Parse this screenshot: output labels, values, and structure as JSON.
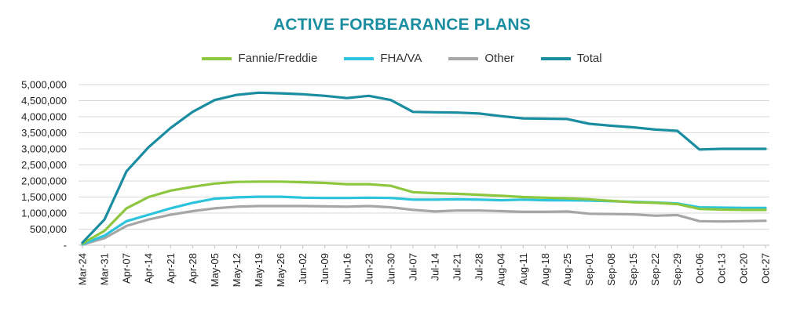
{
  "chart_data": {
    "type": "line",
    "title": "ACTIVE FORBEARANCE PLANS",
    "xlabel": "",
    "ylabel": "",
    "ylim": [
      0,
      5000000
    ],
    "yticks": [
      "-",
      "500,000",
      "1,000,000",
      "1,500,000",
      "2,000,000",
      "2,500,000",
      "3,000,000",
      "3,500,000",
      "4,000,000",
      "4,500,000",
      "5,000,000"
    ],
    "grid": true,
    "legend_position": "top",
    "categories": [
      "Mar-24",
      "Mar-31",
      "Apr-07",
      "Apr-14",
      "Apr-21",
      "Apr-28",
      "May-05",
      "May-12",
      "May-19",
      "May-26",
      "Jun-02",
      "Jun-09",
      "Jun-16",
      "Jun-23",
      "Jun-30",
      "Jul-07",
      "Jul-14",
      "Jul-21",
      "Jul-28",
      "Aug-04",
      "Aug-11",
      "Aug-18",
      "Aug-25",
      "Sep-01",
      "Sep-08",
      "Sep-15",
      "Sep-22",
      "Sep-29",
      "Oct-06",
      "Oct-13",
      "Oct-20",
      "Oct-27"
    ],
    "series": [
      {
        "name": "Fannie/Freddie",
        "color": "#8dc63f",
        "values": [
          50000,
          450000,
          1150000,
          1500000,
          1700000,
          1820000,
          1920000,
          1970000,
          1980000,
          1980000,
          1960000,
          1940000,
          1900000,
          1900000,
          1850000,
          1650000,
          1620000,
          1600000,
          1570000,
          1540000,
          1500000,
          1480000,
          1460000,
          1430000,
          1380000,
          1340000,
          1320000,
          1280000,
          1130000,
          1110000,
          1100000,
          1100000
        ]
      },
      {
        "name": "FHA/VA",
        "color": "#2bc4dc",
        "values": [
          30000,
          300000,
          750000,
          950000,
          1150000,
          1320000,
          1450000,
          1490000,
          1510000,
          1510000,
          1480000,
          1470000,
          1470000,
          1480000,
          1470000,
          1420000,
          1420000,
          1430000,
          1420000,
          1400000,
          1420000,
          1400000,
          1400000,
          1390000,
          1370000,
          1350000,
          1330000,
          1300000,
          1180000,
          1170000,
          1160000,
          1160000
        ]
      },
      {
        "name": "Other",
        "color": "#a6a6a6",
        "values": [
          20000,
          220000,
          600000,
          800000,
          950000,
          1060000,
          1150000,
          1200000,
          1220000,
          1220000,
          1220000,
          1210000,
          1200000,
          1220000,
          1180000,
          1100000,
          1050000,
          1080000,
          1080000,
          1060000,
          1040000,
          1040000,
          1050000,
          980000,
          970000,
          960000,
          920000,
          940000,
          750000,
          740000,
          750000,
          760000
        ]
      },
      {
        "name": "Total",
        "color": "#1b8da1",
        "values": [
          80000,
          800000,
          2300000,
          3050000,
          3650000,
          4150000,
          4520000,
          4680000,
          4750000,
          4730000,
          4700000,
          4650000,
          4580000,
          4650000,
          4520000,
          4150000,
          4140000,
          4130000,
          4100000,
          4020000,
          3950000,
          3940000,
          3930000,
          3780000,
          3720000,
          3670000,
          3600000,
          3560000,
          2980000,
          3000000,
          3000000,
          3000000
        ]
      }
    ]
  },
  "colors": {
    "title": "#1b8da1",
    "grid": "#d9d9d9",
    "axis": "#bfbfbf"
  }
}
